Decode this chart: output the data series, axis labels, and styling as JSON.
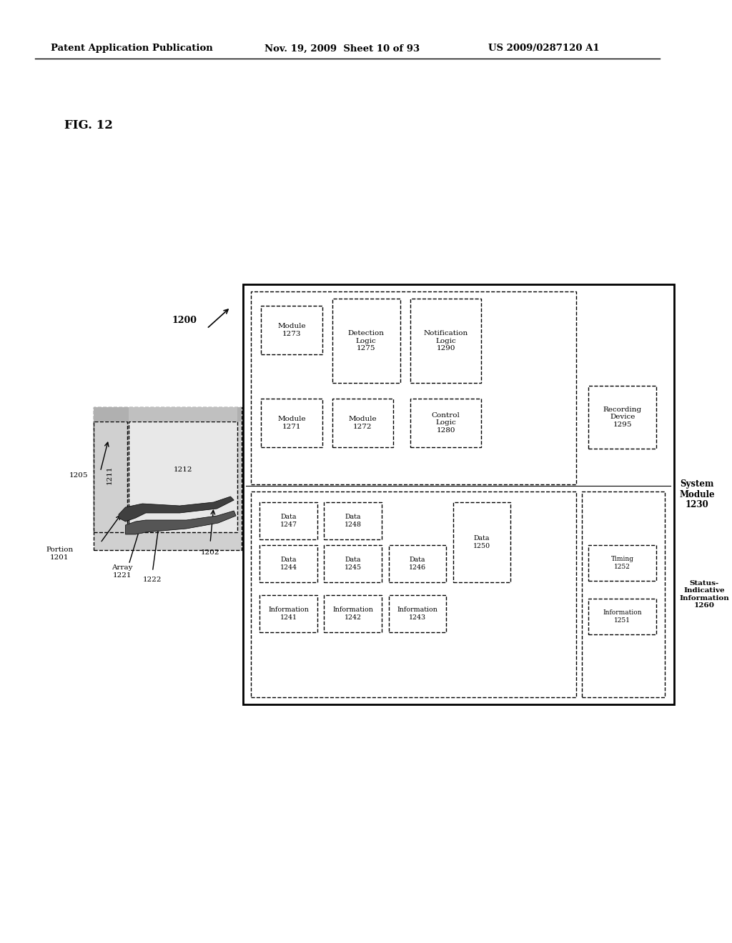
{
  "header_left": "Patent Application Publication",
  "header_mid": "Nov. 19, 2009  Sheet 10 of 93",
  "header_right": "US 2009/0287120 A1",
  "fig_label": "FIG. 12",
  "bg_color": "#ffffff",
  "main_box_label": "System\nModule\n1230",
  "top_section_label": "",
  "bottom_section_label": "",
  "top_boxes": [
    {
      "lines": [
        "Module",
        "1271"
      ],
      "col": 0,
      "row": 1
    },
    {
      "lines": [
        "Module",
        "1272"
      ],
      "col": 1,
      "row": 1
    },
    {
      "lines": [
        "Module",
        "1273"
      ],
      "col": 0,
      "row": 0
    },
    {
      "lines": [
        "Detection",
        "Logic",
        "1275"
      ],
      "col": 1,
      "row": 0
    },
    {
      "lines": [
        "Notification",
        "Logic",
        "1290"
      ],
      "col": 2,
      "row": 0
    },
    {
      "lines": [
        "Control",
        "Logic",
        "1280"
      ],
      "col": 2,
      "row": 1
    },
    {
      "lines": [
        "Recording",
        "Device",
        "1295"
      ],
      "col": 3,
      "row": 1
    }
  ],
  "bottom_boxes": [
    {
      "lines": [
        "Information",
        "1241"
      ],
      "col": 0,
      "row": 2
    },
    {
      "lines": [
        "Information",
        "1242"
      ],
      "col": 1,
      "row": 2
    },
    {
      "lines": [
        "Information",
        "1243"
      ],
      "col": 2,
      "row": 2
    },
    {
      "lines": [
        "Data",
        "1244"
      ],
      "col": 0,
      "row": 1
    },
    {
      "lines": [
        "Data",
        "1245"
      ],
      "col": 1,
      "row": 1
    },
    {
      "lines": [
        "Data",
        "1246"
      ],
      "col": 2,
      "row": 1
    },
    {
      "lines": [
        "Data",
        "1247"
      ],
      "col": 0,
      "row": 0
    },
    {
      "lines": [
        "Data",
        "1248"
      ],
      "col": 1,
      "row": 0
    },
    {
      "lines": [
        "Data",
        "1250"
      ],
      "col": 2,
      "row": 0
    }
  ],
  "right_boxes": [
    {
      "lines": [
        "Information",
        "1251"
      ],
      "col": 0,
      "row": 2
    },
    {
      "lines": [
        "Timing",
        "1252"
      ],
      "col": 0,
      "row": 1
    },
    {
      "lines": [
        "Status-\nIndicative\nInformation\n1260"
      ],
      "col": 0,
      "row": 0
    }
  ],
  "left_labels": [
    "1200",
    "1205",
    "Portion\n1201",
    "Array\n1221",
    "1222",
    "1202",
    "1211",
    "1212"
  ]
}
